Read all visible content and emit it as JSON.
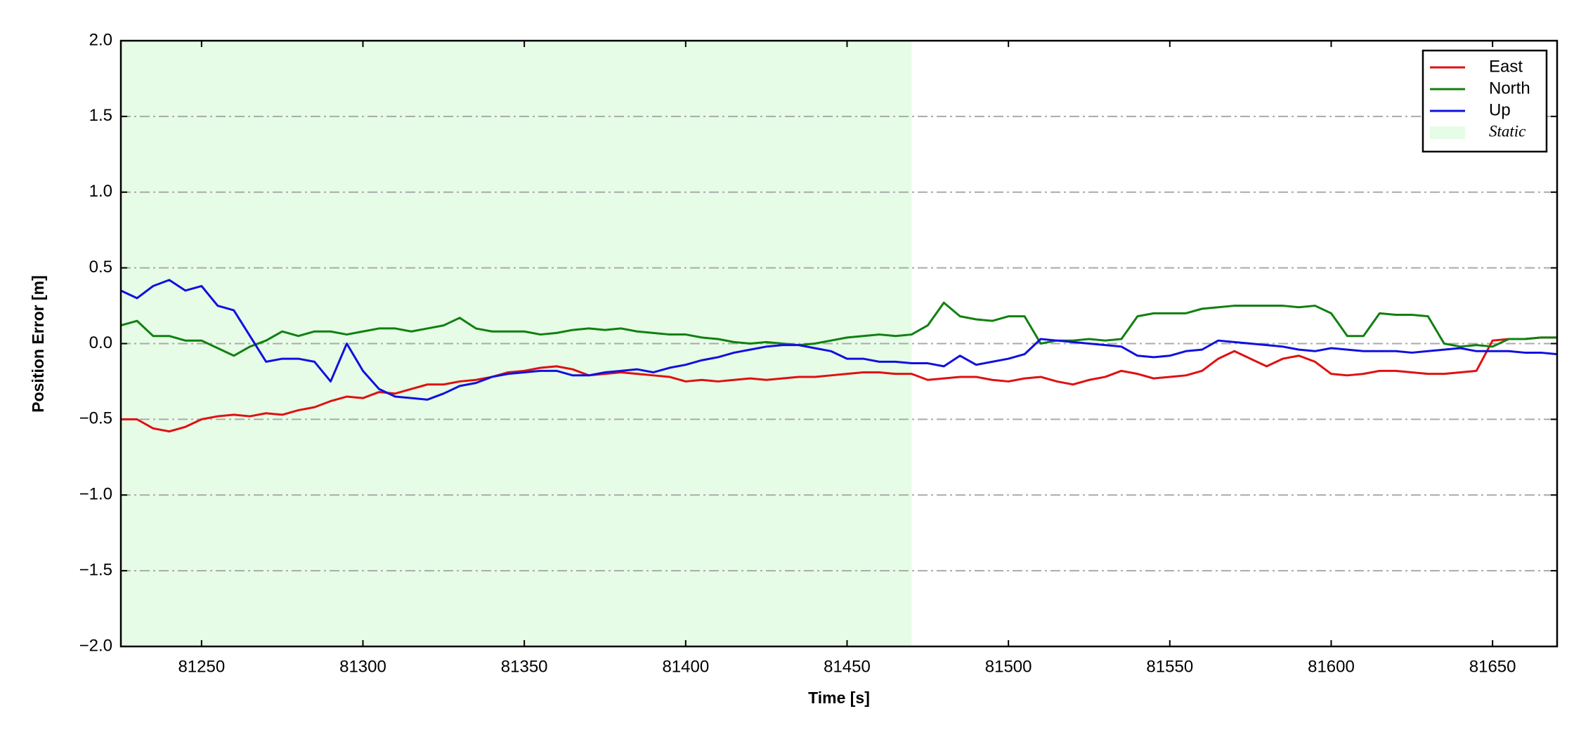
{
  "chart_data": {
    "type": "line",
    "x_label": "Time [s]",
    "y_label": "Position Error [m]",
    "x": [
      81225,
      81230,
      81235,
      81240,
      81245,
      81250,
      81255,
      81260,
      81265,
      81270,
      81275,
      81280,
      81285,
      81290,
      81295,
      81300,
      81305,
      81310,
      81315,
      81320,
      81325,
      81330,
      81335,
      81340,
      81345,
      81350,
      81355,
      81360,
      81365,
      81370,
      81375,
      81380,
      81385,
      81390,
      81395,
      81400,
      81405,
      81410,
      81415,
      81420,
      81425,
      81430,
      81435,
      81440,
      81445,
      81450,
      81455,
      81460,
      81465,
      81470,
      81475,
      81480,
      81485,
      81490,
      81495,
      81500,
      81505,
      81510,
      81515,
      81520,
      81525,
      81530,
      81535,
      81540,
      81545,
      81550,
      81555,
      81560,
      81565,
      81570,
      81575,
      81580,
      81585,
      81590,
      81595,
      81600,
      81605,
      81610,
      81615,
      81620,
      81625,
      81630,
      81635,
      81640,
      81645,
      81650,
      81655,
      81660,
      81665,
      81670
    ],
    "series": [
      {
        "name": "East",
        "color": "#e01010",
        "values": [
          -0.5,
          -0.5,
          -0.56,
          -0.58,
          -0.55,
          -0.5,
          -0.48,
          -0.47,
          -0.48,
          -0.46,
          -0.47,
          -0.44,
          -0.42,
          -0.38,
          -0.35,
          -0.36,
          -0.32,
          -0.33,
          -0.3,
          -0.27,
          -0.27,
          -0.25,
          -0.24,
          -0.22,
          -0.19,
          -0.18,
          -0.16,
          -0.15,
          -0.17,
          -0.21,
          -0.2,
          -0.19,
          -0.2,
          -0.21,
          -0.22,
          -0.25,
          -0.24,
          -0.25,
          -0.24,
          -0.23,
          -0.24,
          -0.23,
          -0.22,
          -0.22,
          -0.21,
          -0.2,
          -0.19,
          -0.19,
          -0.2,
          -0.2,
          -0.24,
          -0.23,
          -0.22,
          -0.22,
          -0.24,
          -0.25,
          -0.23,
          -0.22,
          -0.25,
          -0.27,
          -0.24,
          -0.22,
          -0.18,
          -0.2,
          -0.23,
          -0.22,
          -0.21,
          -0.18,
          -0.1,
          -0.05,
          -0.1,
          -0.15,
          -0.1,
          -0.08,
          -0.12,
          -0.2,
          -0.21,
          -0.2,
          -0.18,
          -0.18,
          -0.19,
          -0.2,
          -0.2,
          -0.19,
          -0.18,
          0.02,
          0.03,
          0.03,
          0.04,
          0.04
        ]
      },
      {
        "name": "North",
        "color": "#108010",
        "values": [
          0.12,
          0.15,
          0.05,
          0.05,
          0.02,
          0.02,
          -0.03,
          -0.08,
          -0.02,
          0.02,
          0.08,
          0.05,
          0.08,
          0.08,
          0.06,
          0.08,
          0.1,
          0.1,
          0.08,
          0.1,
          0.12,
          0.17,
          0.1,
          0.08,
          0.08,
          0.08,
          0.06,
          0.07,
          0.09,
          0.1,
          0.09,
          0.1,
          0.08,
          0.07,
          0.06,
          0.06,
          0.04,
          0.03,
          0.01,
          0.0,
          0.01,
          0.0,
          -0.01,
          0.0,
          0.02,
          0.04,
          0.05,
          0.06,
          0.05,
          0.06,
          0.12,
          0.27,
          0.18,
          0.16,
          0.15,
          0.18,
          0.18,
          0.0,
          0.02,
          0.02,
          0.03,
          0.02,
          0.03,
          0.18,
          0.2,
          0.2,
          0.2,
          0.23,
          0.24,
          0.25,
          0.25,
          0.25,
          0.25,
          0.24,
          0.25,
          0.2,
          0.05,
          0.05,
          0.2,
          0.19,
          0.19,
          0.18,
          0.0,
          -0.02,
          -0.01,
          -0.02,
          0.03,
          0.03,
          0.04,
          0.04
        ]
      },
      {
        "name": "Up",
        "color": "#1010e0",
        "values": [
          0.35,
          0.3,
          0.38,
          0.42,
          0.35,
          0.38,
          0.25,
          0.22,
          0.05,
          -0.12,
          -0.1,
          -0.1,
          -0.12,
          -0.25,
          0.0,
          -0.18,
          -0.3,
          -0.35,
          -0.36,
          -0.37,
          -0.33,
          -0.28,
          -0.26,
          -0.22,
          -0.2,
          -0.19,
          -0.18,
          -0.18,
          -0.21,
          -0.21,
          -0.19,
          -0.18,
          -0.17,
          -0.19,
          -0.16,
          -0.14,
          -0.11,
          -0.09,
          -0.06,
          -0.04,
          -0.02,
          -0.01,
          -0.01,
          -0.03,
          -0.05,
          -0.1,
          -0.1,
          -0.12,
          -0.12,
          -0.13,
          -0.13,
          -0.15,
          -0.08,
          -0.14,
          -0.12,
          -0.1,
          -0.07,
          0.03,
          0.02,
          0.01,
          0.0,
          -0.01,
          -0.02,
          -0.08,
          -0.09,
          -0.08,
          -0.05,
          -0.04,
          0.02,
          0.01,
          0.0,
          -0.01,
          -0.02,
          -0.04,
          -0.05,
          -0.03,
          -0.04,
          -0.05,
          -0.05,
          -0.05,
          -0.06,
          -0.05,
          -0.04,
          -0.03,
          -0.05,
          -0.05,
          -0.05,
          -0.06,
          -0.06,
          -0.07
        ]
      }
    ],
    "shaded_region": {
      "label": "Static",
      "xrange": [
        81225,
        81470
      ],
      "color": "#e6fce6"
    },
    "xlim": [
      81225,
      81670
    ],
    "xticks": [
      81250,
      81300,
      81350,
      81400,
      81450,
      81500,
      81550,
      81600,
      81650
    ],
    "ylim": [
      -2,
      2
    ],
    "yticks": [
      {
        "value": -2,
        "label": "−2.0"
      },
      {
        "value": -1.5,
        "label": "−1.5"
      },
      {
        "value": -1,
        "label": "−1.0"
      },
      {
        "value": -0.5,
        "label": "−0.5"
      },
      {
        "value": 0,
        "label": "0.0"
      },
      0.5,
      {
        "value": 1,
        "label": "1.0"
      },
      1.5,
      {
        "value": 2,
        "label": "2.0"
      }
    ],
    "grid": true,
    "legend": "upper right"
  }
}
